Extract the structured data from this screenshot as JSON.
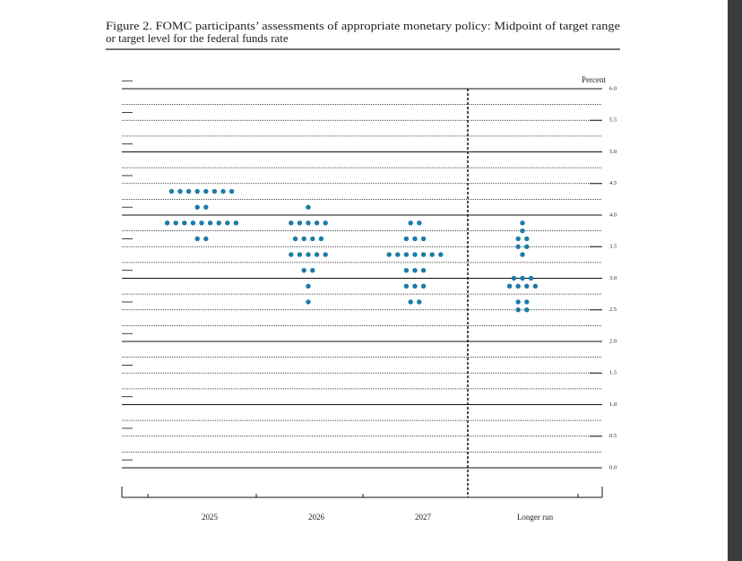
{
  "chart_data": {
    "type": "dot",
    "title": [
      "Figure 2.  FOMC participants’ assessments of appropriate monetary policy: Midpoint of target range",
      "or target level for the federal funds rate"
    ],
    "y_label": "Percent",
    "color": "#1b7ca6",
    "categories": [
      "2025",
      "2026",
      "2027",
      "Longer run"
    ],
    "dots": [
      {
        "rates": [
          4.375,
          4.125,
          3.875,
          3.625
        ],
        "counts": [
          8,
          2,
          9,
          2
        ]
      },
      {
        "rates": [
          4.125,
          3.875,
          3.625,
          3.375,
          3.125,
          2.875,
          2.625
        ],
        "counts": [
          1,
          5,
          4,
          5,
          2,
          1,
          1
        ]
      },
      {
        "rates": [
          3.875,
          3.625,
          3.375,
          3.125,
          2.875,
          2.625
        ],
        "counts": [
          2,
          3,
          7,
          3,
          3,
          2
        ]
      },
      {
        "rates": [
          3.875,
          3.75,
          3.625,
          3.5,
          3.375,
          3.0,
          2.875,
          2.625,
          2.5
        ],
        "counts": [
          1,
          1,
          2,
          2,
          1,
          3,
          4,
          2,
          2
        ]
      }
    ],
    "ylim": [
      0,
      6
    ],
    "yticks": [
      {
        "value": 0,
        "label": "0.0"
      },
      0.5,
      {
        "value": 1,
        "label": "1.0"
      },
      1.5,
      {
        "value": 2,
        "label": "2.0"
      },
      2.5,
      {
        "value": 3,
        "label": "3.0"
      },
      3.5,
      {
        "value": 4,
        "label": "4.0"
      },
      4.5,
      {
        "value": 5,
        "label": "5.0"
      },
      5.5,
      {
        "value": 6,
        "label": "6.0"
      }
    ]
  }
}
